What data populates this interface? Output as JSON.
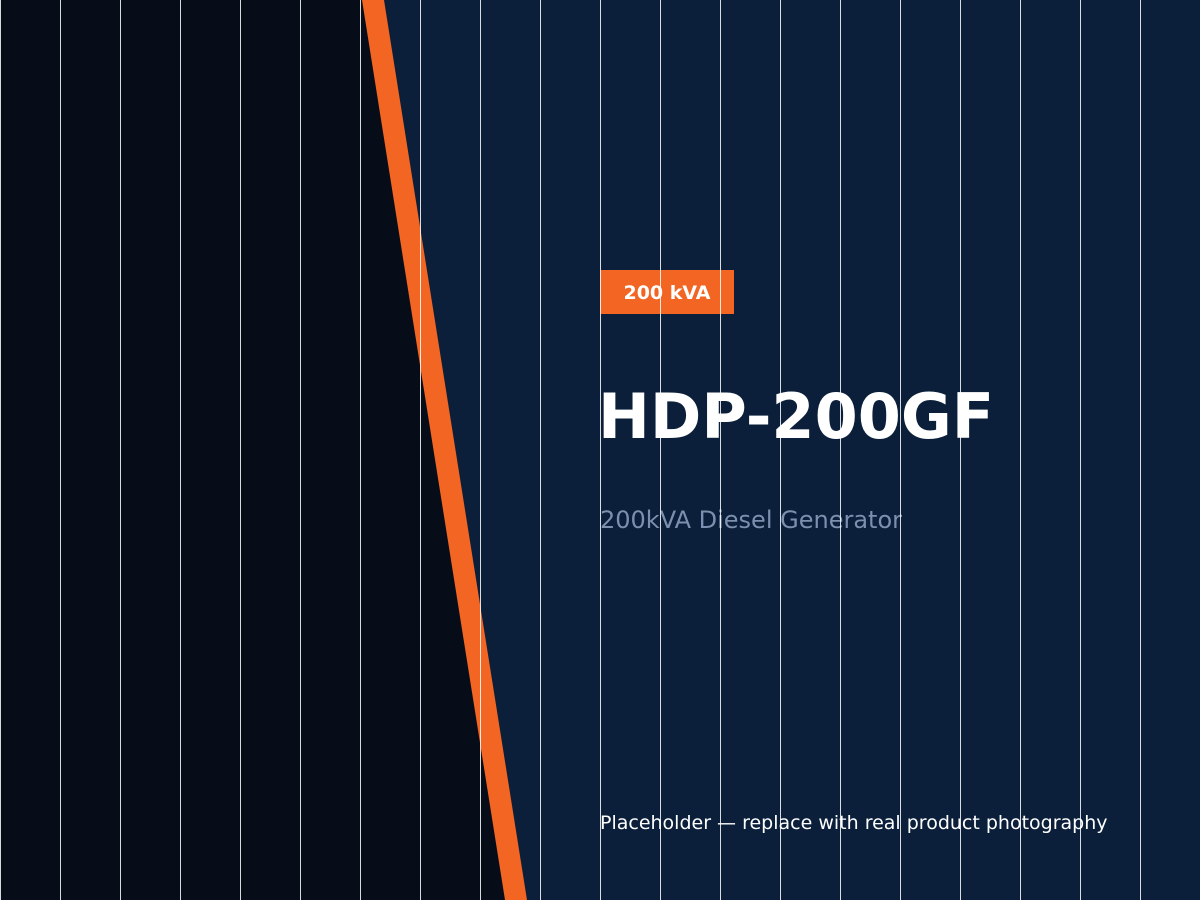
{
  "badge": "200 kVA",
  "title": "HDP-200GF",
  "subtitle": "200kVA Diesel Generator",
  "note": "Placeholder — replace with real product photography"
}
